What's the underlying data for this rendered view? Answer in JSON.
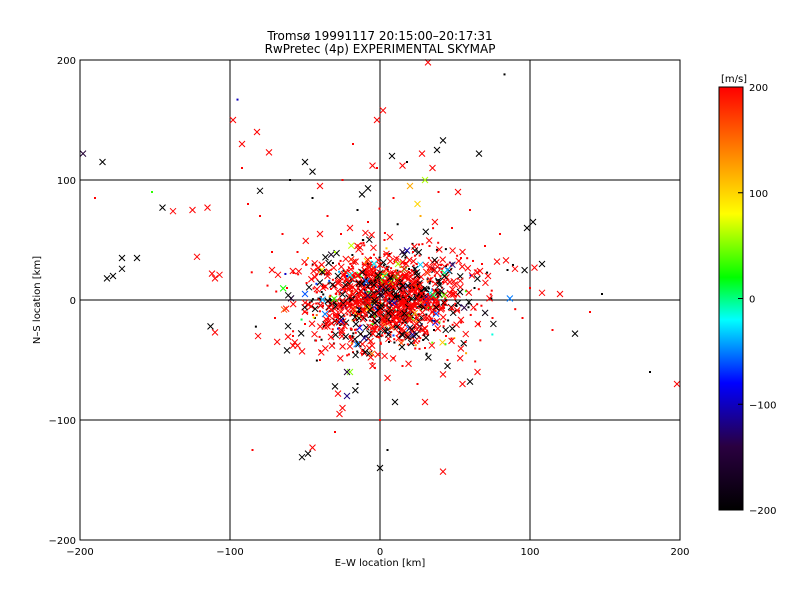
{
  "chart_data": {
    "type": "scatter",
    "title": "Tromsø 19991117 20:15:00–20:17:31",
    "subtitle": "RwPretec (4p) EXPERIMENTAL SKYMAP",
    "xlabel": "E–W location [km]",
    "ylabel": "N–S location [km]",
    "xlim": [
      -200,
      200
    ],
    "ylim": [
      -200,
      200
    ],
    "xticks": [
      -200,
      -100,
      0,
      100,
      200
    ],
    "yticks": [
      -200,
      -100,
      0,
      100,
      200
    ],
    "xtick_labels": [
      "−200",
      "−100",
      "0",
      "100",
      "200"
    ],
    "ytick_labels": [
      "−200",
      "−100",
      "0",
      "100",
      "200"
    ],
    "grid": true,
    "marker_types": [
      "x",
      "dot"
    ],
    "colorbar": {
      "label": "[m/s]",
      "min": -200,
      "max": 200,
      "ticks": [
        200,
        100,
        0,
        -100,
        -200
      ],
      "tick_labels": [
        "200",
        "100",
        "0",
        "−100",
        "−200"
      ],
      "colors": [
        "#000000",
        "#2a0040",
        "#0000ff",
        "#00ffff",
        "#00ff00",
        "#ffff00",
        "#ff8000",
        "#ff0000"
      ]
    },
    "series": [
      {
        "marker": "x",
        "points": [
          [
            -198,
            122,
            -150
          ],
          [
            -185,
            115,
            -200
          ],
          [
            -182,
            18,
            -200
          ],
          [
            -178,
            20,
            -200
          ],
          [
            -172,
            35,
            -200
          ],
          [
            -172,
            26,
            -200
          ],
          [
            -162,
            35,
            -200
          ],
          [
            -145,
            77,
            -200
          ],
          [
            -138,
            74,
            200
          ],
          [
            -125,
            75,
            200
          ],
          [
            -122,
            36,
            200
          ],
          [
            -115,
            77,
            200
          ],
          [
            -112,
            22,
            200
          ],
          [
            -110,
            18,
            200
          ],
          [
            -107,
            21,
            200
          ],
          [
            -110,
            -27,
            200
          ],
          [
            -113,
            -22,
            -200
          ],
          [
            -98,
            150,
            200
          ],
          [
            -92,
            130,
            200
          ],
          [
            -82,
            140,
            200
          ],
          [
            -80,
            91,
            -200
          ],
          [
            -74,
            123,
            200
          ],
          [
            -72,
            25,
            200
          ],
          [
            -68,
            21,
            200
          ],
          [
            -62,
            -42,
            -200
          ],
          [
            -58,
            -38,
            200
          ],
          [
            -55,
            -38,
            200
          ],
          [
            -50,
            115,
            -200
          ],
          [
            -45,
            107,
            -200
          ],
          [
            -40,
            55,
            200
          ],
          [
            -35,
            -22,
            200
          ],
          [
            -32,
            -38,
            200
          ],
          [
            -30,
            -72,
            -200
          ],
          [
            -28,
            -78,
            200
          ],
          [
            -27,
            -95,
            200
          ],
          [
            -25,
            -90,
            200
          ],
          [
            -22,
            -80,
            -120
          ],
          [
            -48,
            -128,
            -200
          ],
          [
            -45,
            -123,
            200
          ],
          [
            -52,
            -131,
            -200
          ],
          [
            -20,
            -60,
            50
          ],
          [
            -12,
            88,
            -200
          ],
          [
            -8,
            93,
            -200
          ],
          [
            -5,
            112,
            200
          ],
          [
            -2,
            150,
            200
          ],
          [
            2,
            158,
            200
          ],
          [
            8,
            120,
            -200
          ],
          [
            15,
            112,
            200
          ],
          [
            28,
            122,
            200
          ],
          [
            30,
            100,
            60
          ],
          [
            35,
            110,
            200
          ],
          [
            38,
            125,
            -200
          ],
          [
            32,
            198,
            200
          ],
          [
            42,
            133,
            -200
          ],
          [
            52,
            90,
            200
          ],
          [
            55,
            40,
            200
          ],
          [
            66,
            122,
            -200
          ],
          [
            72,
            20,
            200
          ],
          [
            78,
            32,
            200
          ],
          [
            84,
            33,
            200
          ],
          [
            90,
            26,
            200
          ],
          [
            98,
            60,
            -200
          ],
          [
            102,
            65,
            -200
          ],
          [
            103,
            27,
            200
          ],
          [
            108,
            30,
            -200
          ],
          [
            108,
            6,
            200
          ],
          [
            120,
            5,
            200
          ],
          [
            130,
            -28,
            -200
          ],
          [
            198,
            -70,
            200
          ],
          [
            65,
            -60,
            200
          ],
          [
            60,
            -68,
            -200
          ],
          [
            55,
            -70,
            200
          ],
          [
            45,
            -55,
            -200
          ],
          [
            42,
            -62,
            200
          ],
          [
            30,
            -85,
            200
          ],
          [
            10,
            -85,
            -200
          ],
          [
            5,
            -65,
            200
          ],
          [
            -5,
            -55,
            200
          ],
          [
            0,
            -140,
            -200
          ],
          [
            42,
            -143,
            200
          ],
          [
            -40,
            95,
            200
          ],
          [
            -20,
            60,
            200
          ],
          [
            20,
            95,
            120
          ],
          [
            25,
            80,
            100
          ],
          [
            -15,
            45,
            200
          ],
          [
            15,
            40,
            -150
          ],
          [
            -35,
            20,
            200
          ],
          [
            35,
            -10,
            200
          ],
          [
            12,
            30,
            60
          ],
          [
            -22,
            -60,
            -150
          ],
          [
            45,
            25,
            -40
          ],
          [
            -50,
            5,
            -60
          ]
        ]
      },
      {
        "marker": "dot",
        "points": [
          [
            -190,
            85,
            200
          ],
          [
            -152,
            90,
            30
          ],
          [
            -95,
            167,
            -100
          ],
          [
            -92,
            110,
            200
          ],
          [
            -88,
            80,
            200
          ],
          [
            -80,
            70,
            200
          ],
          [
            -75,
            12,
            200
          ],
          [
            -70,
            -15,
            200
          ],
          [
            -65,
            55,
            200
          ],
          [
            -60,
            100,
            -200
          ],
          [
            -55,
            40,
            200
          ],
          [
            -50,
            -20,
            200
          ],
          [
            -45,
            85,
            -200
          ],
          [
            -40,
            -50,
            200
          ],
          [
            -35,
            70,
            200
          ],
          [
            -30,
            40,
            60
          ],
          [
            -28,
            -15,
            200
          ],
          [
            -25,
            100,
            200
          ],
          [
            -22,
            20,
            -100
          ],
          [
            -20,
            -30,
            200
          ],
          [
            -18,
            130,
            200
          ],
          [
            -15,
            75,
            -200
          ],
          [
            -12,
            -45,
            200
          ],
          [
            -10,
            10,
            200
          ],
          [
            -8,
            65,
            200
          ],
          [
            -5,
            -20,
            40
          ],
          [
            -2,
            110,
            200
          ],
          [
            0,
            -100,
            200
          ],
          [
            3,
            50,
            200
          ],
          [
            6,
            -35,
            -200
          ],
          [
            9,
            85,
            200
          ],
          [
            12,
            5,
            200
          ],
          [
            15,
            -55,
            200
          ],
          [
            18,
            115,
            -200
          ],
          [
            21,
            25,
            200
          ],
          [
            24,
            -15,
            200
          ],
          [
            27,
            70,
            120
          ],
          [
            30,
            -40,
            200
          ],
          [
            33,
            45,
            200
          ],
          [
            36,
            -25,
            -200
          ],
          [
            39,
            90,
            200
          ],
          [
            42,
            15,
            200
          ],
          [
            45,
            -50,
            200
          ],
          [
            48,
            60,
            200
          ],
          [
            51,
            -5,
            -200
          ],
          [
            54,
            35,
            200
          ],
          [
            57,
            -35,
            200
          ],
          [
            60,
            75,
            200
          ],
          [
            63,
            10,
            -200
          ],
          [
            66,
            -20,
            200
          ],
          [
            70,
            45,
            200
          ],
          [
            75,
            -15,
            200
          ],
          [
            80,
            55,
            200
          ],
          [
            85,
            25,
            -200
          ],
          [
            95,
            -15,
            200
          ],
          [
            100,
            10,
            200
          ],
          [
            115,
            -25,
            200
          ],
          [
            140,
            -10,
            200
          ],
          [
            148,
            5,
            -200
          ],
          [
            180,
            -60,
            -200
          ],
          [
            83,
            188,
            -200
          ],
          [
            5,
            -125,
            -200
          ],
          [
            -85,
            -125,
            200
          ],
          [
            -30,
            -110,
            200
          ],
          [
            -62,
            10,
            200
          ],
          [
            -48,
            35,
            120
          ],
          [
            -38,
            -5,
            200
          ],
          [
            -26,
            55,
            200
          ],
          [
            -14,
            -10,
            -200
          ],
          [
            -6,
            35,
            200
          ],
          [
            2,
            20,
            80
          ],
          [
            10,
            -10,
            200
          ],
          [
            22,
            40,
            200
          ],
          [
            32,
            5,
            200
          ],
          [
            44,
            -30,
            200
          ],
          [
            -58,
            -30,
            200
          ],
          [
            68,
            30,
            200
          ],
          [
            -72,
            40,
            200
          ],
          [
            25,
            -70,
            200
          ],
          [
            -15,
            -70,
            -200
          ]
        ]
      }
    ],
    "cluster": {
      "center": [
        5,
        0
      ],
      "spread": [
        26,
        20
      ],
      "count_x": 700,
      "count_dot": 700,
      "color_weights": {
        "200": 0.62,
        "-200": 0.26,
        "mixed": 0.12
      }
    }
  }
}
